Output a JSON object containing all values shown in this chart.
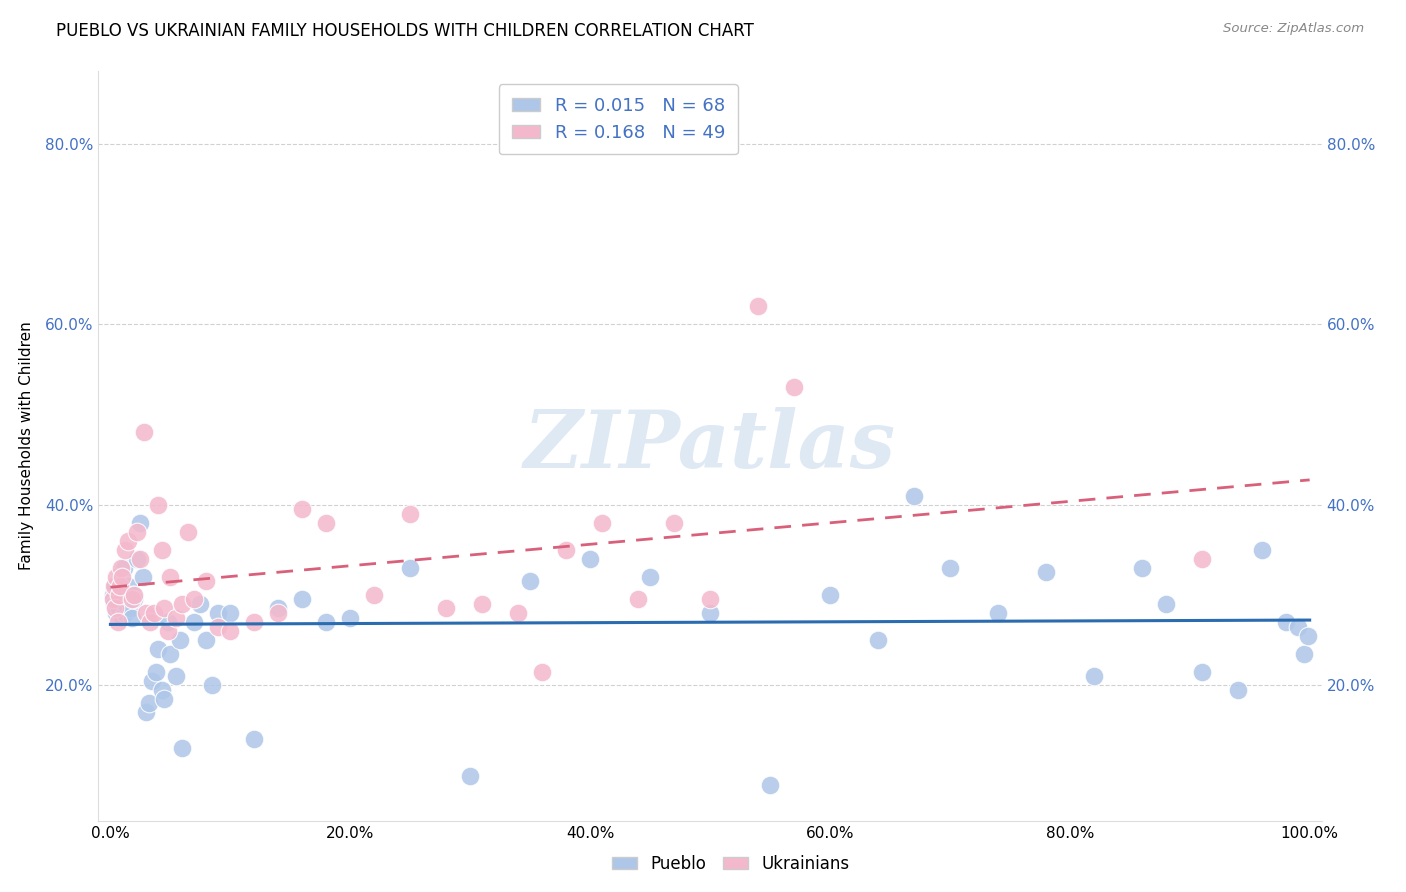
{
  "title": "PUEBLO VS UKRAINIAN FAMILY HOUSEHOLDS WITH CHILDREN CORRELATION CHART",
  "source": "Source: ZipAtlas.com",
  "ylabel": "Family Households with Children",
  "watermark": "ZIPatlas",
  "pueblo_R": 0.015,
  "pueblo_N": 68,
  "ukrainian_R": 0.168,
  "ukrainian_N": 49,
  "pueblo_color": "#aec6e8",
  "ukrainian_color": "#f4b8cc",
  "pueblo_line_color": "#2b6cb0",
  "ukrainian_line_color": "#d9607a",
  "pueblo_x": [
    0.002,
    0.003,
    0.004,
    0.005,
    0.006,
    0.007,
    0.008,
    0.009,
    0.01,
    0.011,
    0.012,
    0.013,
    0.014,
    0.015,
    0.016,
    0.017,
    0.018,
    0.019,
    0.02,
    0.022,
    0.025,
    0.027,
    0.03,
    0.032,
    0.035,
    0.038,
    0.04,
    0.043,
    0.045,
    0.048,
    0.05,
    0.055,
    0.058,
    0.06,
    0.07,
    0.075,
    0.08,
    0.085,
    0.09,
    0.1,
    0.12,
    0.14,
    0.16,
    0.18,
    0.2,
    0.25,
    0.3,
    0.35,
    0.4,
    0.45,
    0.5,
    0.55,
    0.6,
    0.64,
    0.67,
    0.7,
    0.74,
    0.78,
    0.82,
    0.86,
    0.88,
    0.91,
    0.94,
    0.96,
    0.98,
    0.99,
    0.995,
    0.999
  ],
  "pueblo_y": [
    0.3,
    0.29,
    0.31,
    0.28,
    0.295,
    0.285,
    0.31,
    0.32,
    0.275,
    0.33,
    0.28,
    0.29,
    0.3,
    0.31,
    0.295,
    0.285,
    0.275,
    0.3,
    0.295,
    0.34,
    0.38,
    0.32,
    0.17,
    0.18,
    0.205,
    0.215,
    0.24,
    0.195,
    0.185,
    0.27,
    0.235,
    0.21,
    0.25,
    0.13,
    0.27,
    0.29,
    0.25,
    0.2,
    0.28,
    0.28,
    0.14,
    0.285,
    0.295,
    0.27,
    0.275,
    0.33,
    0.1,
    0.315,
    0.34,
    0.32,
    0.28,
    0.09,
    0.3,
    0.25,
    0.41,
    0.33,
    0.28,
    0.325,
    0.21,
    0.33,
    0.29,
    0.215,
    0.195,
    0.35,
    0.27,
    0.265,
    0.235,
    0.255
  ],
  "ukrainian_x": [
    0.002,
    0.003,
    0.004,
    0.005,
    0.006,
    0.007,
    0.008,
    0.009,
    0.01,
    0.012,
    0.015,
    0.018,
    0.02,
    0.022,
    0.025,
    0.028,
    0.03,
    0.033,
    0.036,
    0.04,
    0.043,
    0.045,
    0.048,
    0.05,
    0.055,
    0.06,
    0.065,
    0.07,
    0.08,
    0.09,
    0.1,
    0.12,
    0.14,
    0.16,
    0.18,
    0.22,
    0.25,
    0.28,
    0.31,
    0.34,
    0.36,
    0.38,
    0.41,
    0.44,
    0.47,
    0.5,
    0.54,
    0.57,
    0.91
  ],
  "ukrainian_y": [
    0.295,
    0.31,
    0.285,
    0.32,
    0.27,
    0.3,
    0.31,
    0.33,
    0.32,
    0.35,
    0.36,
    0.295,
    0.3,
    0.37,
    0.34,
    0.48,
    0.28,
    0.27,
    0.28,
    0.4,
    0.35,
    0.285,
    0.26,
    0.32,
    0.275,
    0.29,
    0.37,
    0.295,
    0.315,
    0.265,
    0.26,
    0.27,
    0.28,
    0.395,
    0.38,
    0.3,
    0.39,
    0.285,
    0.29,
    0.28,
    0.215,
    0.35,
    0.38,
    0.295,
    0.38,
    0.295,
    0.62,
    0.53,
    0.34
  ],
  "xlim": [
    -0.01,
    1.01
  ],
  "ylim": [
    0.05,
    0.88
  ],
  "yticks": [
    0.2,
    0.4,
    0.6,
    0.8
  ],
  "xticks": [
    0.0,
    0.2,
    0.4,
    0.6,
    0.8,
    1.0
  ]
}
